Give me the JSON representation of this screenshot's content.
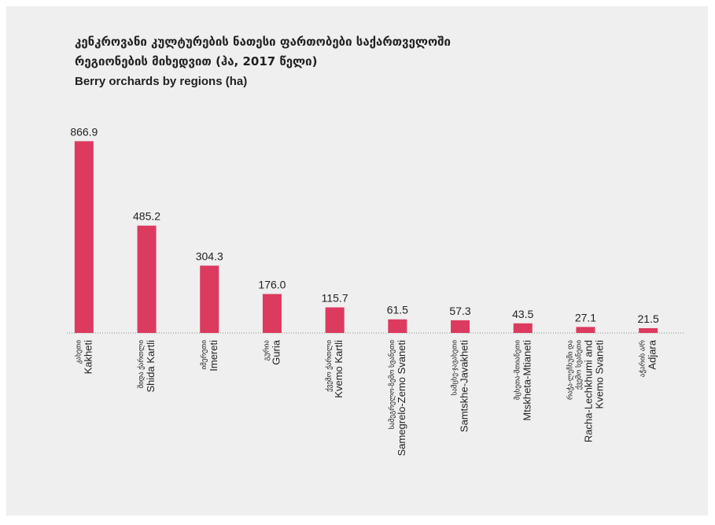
{
  "chart_data": {
    "type": "bar",
    "title": [
      "კენკროვანი კულტურების ნათესი ფართობები საქართველოში",
      "რეგიონების მიხედვით (ჰა, 2017 წელი)"
    ],
    "subtitle": "Berry orchards by regions (ha)",
    "categories_ka": [
      [
        "კახეთი"
      ],
      [
        "შიდა ქართლი"
      ],
      [
        "იმერეთი"
      ],
      [
        "გურია"
      ],
      [
        "ქვემო ქართლი"
      ],
      [
        "სამეგრელო-ზემო სვანეთი"
      ],
      [
        "სამცხე-ჯავახეთი"
      ],
      [
        "მცხეთა-მთიანეთი"
      ],
      [
        "რაჭა-ლეჩხუმი და",
        "ქვემო სვანეთი"
      ],
      [
        "აჭარის ა/რ"
      ]
    ],
    "categories": [
      [
        "Kakheti"
      ],
      [
        "Shida Kartli"
      ],
      [
        "Imereti"
      ],
      [
        "Guria"
      ],
      [
        "Kvemo Kartli"
      ],
      [
        "Samegrelo-Zemo Svaneti"
      ],
      [
        "Samtskhe-Javakheti"
      ],
      [
        "Mtskheta-Mtianeti"
      ],
      [
        "Racha-Lechkhumi and",
        "Kvemo Svaneti"
      ],
      [
        "Adjara"
      ]
    ],
    "values": [
      866.9,
      485.2,
      304.3,
      176,
      115.7,
      61.5,
      57.3,
      43.5,
      27.1,
      21.5
    ],
    "value_labels": [
      "866.9",
      "485.2",
      "304.3",
      "176.0",
      "115.7",
      "61.5",
      "57.3",
      "43.5",
      "27.1",
      "21.5"
    ],
    "color": "#dc3a5e",
    "ylim": [
      0,
      1000
    ]
  }
}
